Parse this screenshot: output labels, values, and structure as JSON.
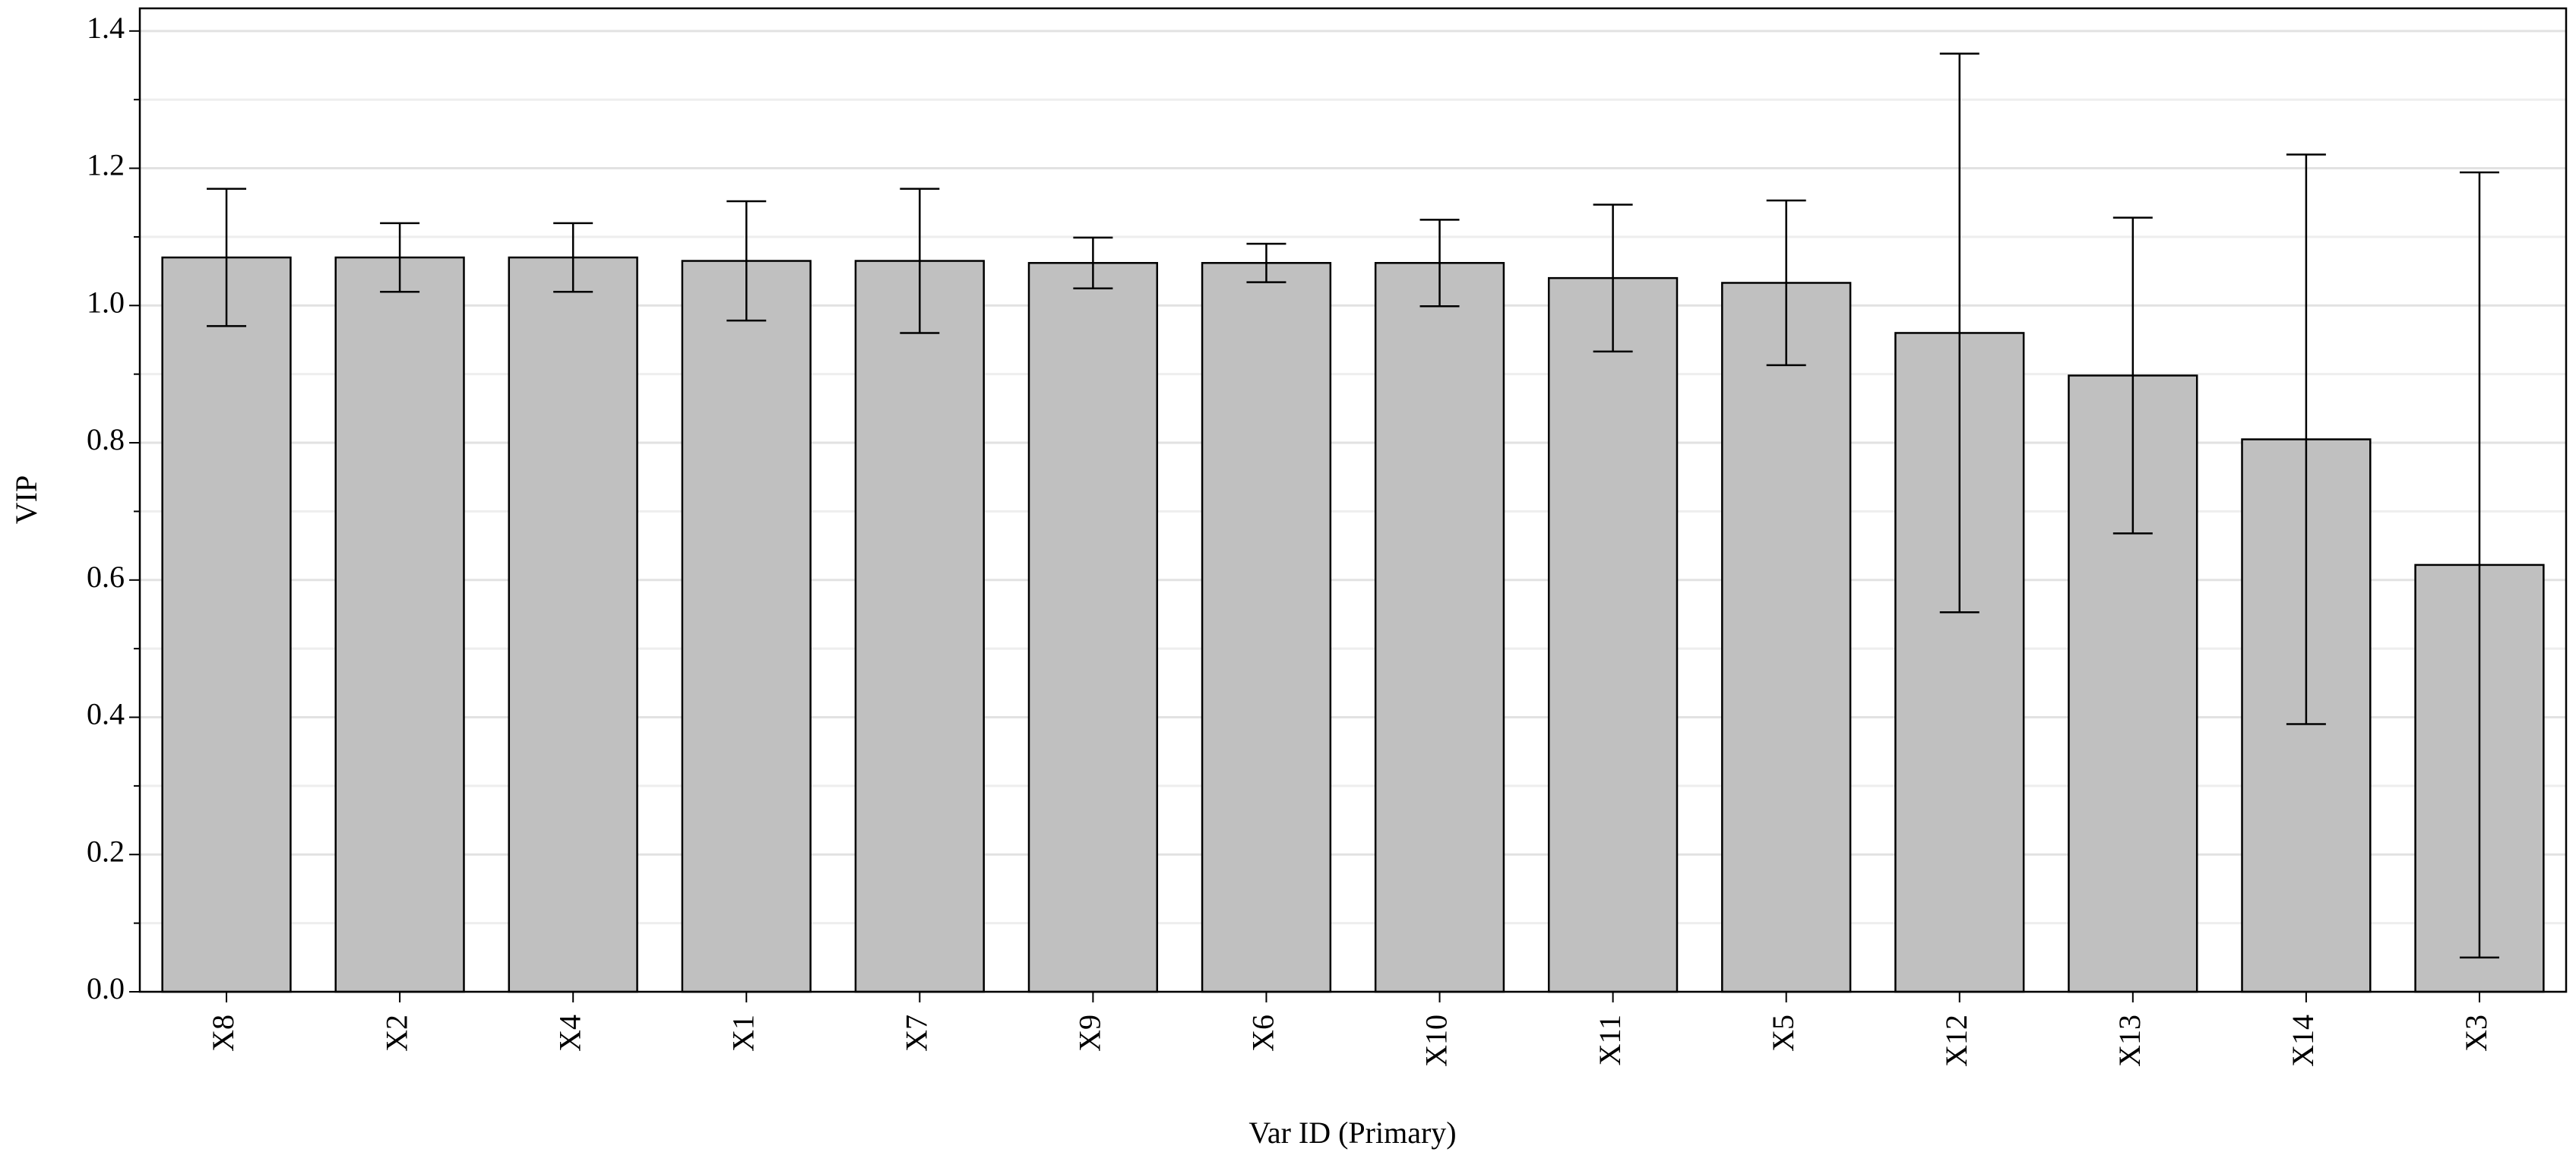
{
  "chart_data": {
    "type": "bar",
    "x_label": "Var ID (Primary)",
    "y_label": "VIP",
    "categories": [
      "X8",
      "X2",
      "X4",
      "X1",
      "X7",
      "X9",
      "X6",
      "X10",
      "X11",
      "X5",
      "X12",
      "X13",
      "X14",
      "X3"
    ],
    "values": [
      1.07,
      1.07,
      1.07,
      1.065,
      1.065,
      1.062,
      1.062,
      1.062,
      1.04,
      1.033,
      0.96,
      0.898,
      0.805,
      0.622
    ],
    "errors": [
      0.1,
      0.05,
      0.05,
      0.087,
      0.105,
      0.037,
      0.028,
      0.063,
      0.107,
      0.12,
      0.407,
      0.23,
      0.415,
      0.572
    ],
    "color": "#c0c0c0",
    "ylim": [
      0,
      1.433
    ],
    "yticks": [
      {
        "value": 0,
        "label": "0.0"
      },
      {
        "value": 0.2,
        "label": "0.2"
      },
      {
        "value": 0.4,
        "label": "0.4"
      },
      {
        "value": 0.6,
        "label": "0.6"
      },
      {
        "value": 0.8,
        "label": "0.8"
      },
      {
        "value": 1.0,
        "label": "1.0"
      },
      {
        "value": 1.2,
        "label": "1.2"
      },
      {
        "value": 1.4,
        "label": "1.4"
      }
    ],
    "minor_yticks": [
      0.1,
      0.3,
      0.5,
      0.7,
      0.9,
      1.1,
      1.3
    ],
    "grid": true
  }
}
